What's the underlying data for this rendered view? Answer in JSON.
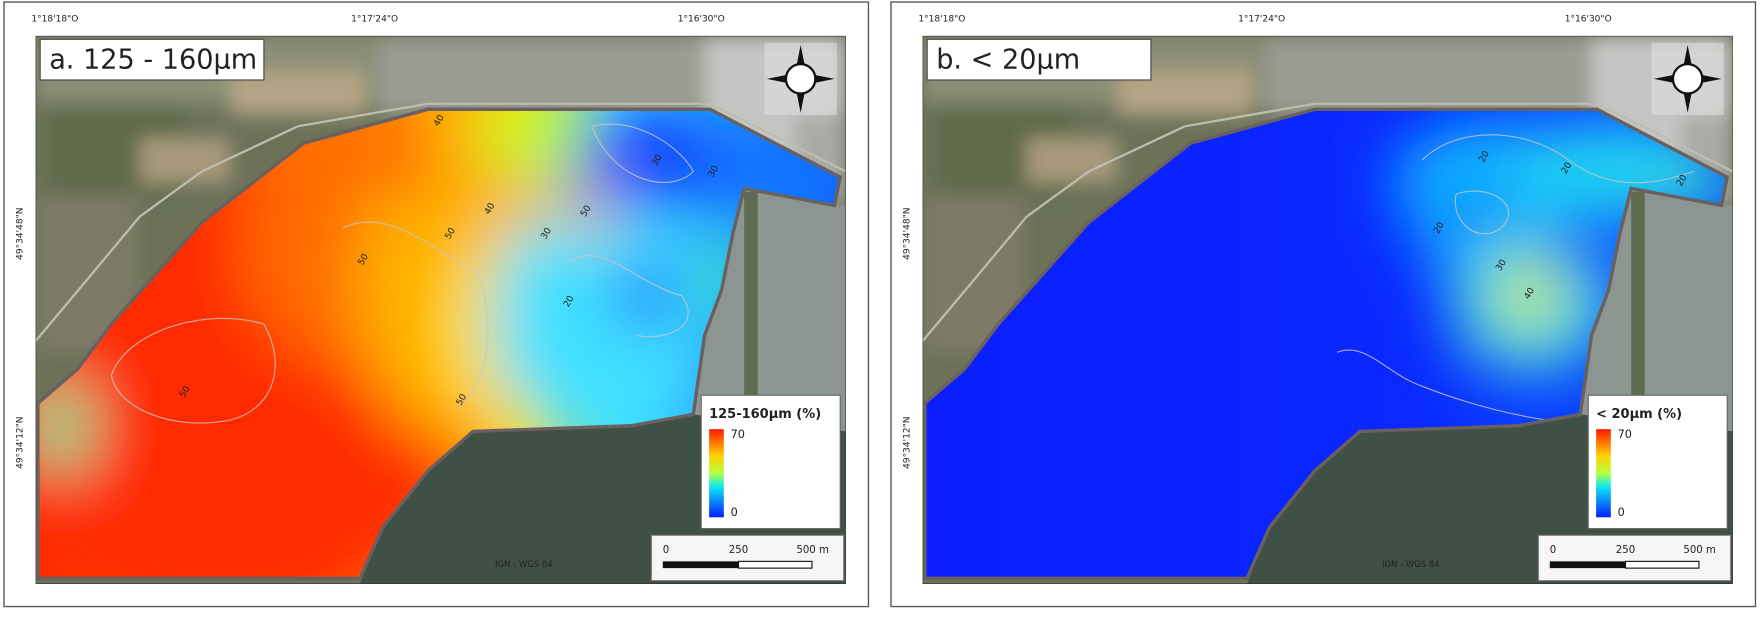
{
  "panels": [
    {
      "title": "a. 125 - 160μm",
      "legend_title": "125-160μm (%)",
      "legend_max": "70",
      "legend_min": "0",
      "contour_labels": [
        "40",
        "40",
        "50",
        "30",
        "50",
        "50",
        "20",
        "30",
        "30",
        "50",
        "50"
      ]
    },
    {
      "title": "b. < 20μm",
      "legend_title": "< 20μm (%)",
      "legend_max": "70",
      "legend_min": "0",
      "contour_labels": [
        "20",
        "20",
        "20",
        "30",
        "40",
        "20"
      ]
    }
  ],
  "lon_labels": [
    "1°18'18\"O",
    "1°17'24\"O",
    "1°16'30\"O"
  ],
  "lat_labels": [
    "49°34'48\"N",
    "49°34'12\"N"
  ],
  "scale_labels": [
    "0",
    "250",
    "500 m"
  ],
  "credit": "IGN - WGS 84"
}
